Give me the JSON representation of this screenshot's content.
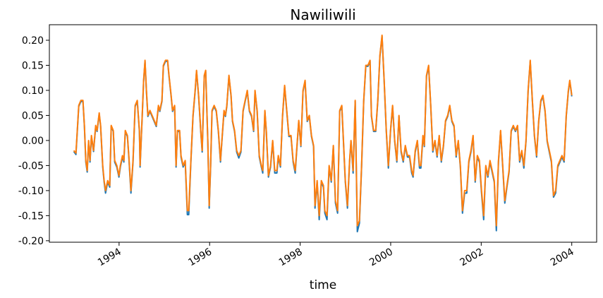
{
  "chart_data": {
    "type": "line",
    "title": "Nawiliwili",
    "x_label": "time",
    "x": [
      1993.0,
      1993.047,
      1993.109,
      1993.156,
      1993.202,
      1993.234,
      1993.265,
      1993.296,
      1993.327,
      1993.358,
      1993.389,
      1993.436,
      1993.483,
      1993.514,
      1993.561,
      1993.592,
      1993.639,
      1993.67,
      1993.701,
      1993.748,
      1993.794,
      1993.826,
      1993.872,
      1993.903,
      1993.95,
      1993.997,
      1994.028,
      1994.075,
      1994.106,
      1994.137,
      1994.184,
      1994.215,
      1994.262,
      1994.308,
      1994.355,
      1994.402,
      1994.449,
      1994.464,
      1994.511,
      1994.542,
      1994.573,
      1994.604,
      1994.636,
      1994.682,
      1994.729,
      1994.776,
      1994.822,
      1994.869,
      1994.9,
      1994.947,
      1994.978,
      1995.025,
      1995.072,
      1995.103,
      1995.15,
      1995.181,
      1995.227,
      1995.259,
      1995.29,
      1995.337,
      1995.368,
      1995.415,
      1995.461,
      1995.508,
      1995.539,
      1995.586,
      1995.633,
      1995.68,
      1995.711,
      1995.757,
      1995.804,
      1995.836,
      1995.882,
      1995.913,
      1995.96,
      1995.991,
      1996.022,
      1996.053,
      1996.1,
      1996.147,
      1996.193,
      1996.24,
      1996.271,
      1996.318,
      1996.349,
      1996.38,
      1996.427,
      1996.474,
      1996.505,
      1996.551,
      1996.598,
      1996.645,
      1996.692,
      1996.739,
      1996.785,
      1996.832,
      1996.879,
      1996.926,
      1996.972,
      1997.003,
      1997.05,
      1997.097,
      1997.143,
      1997.174,
      1997.221,
      1997.252,
      1997.299,
      1997.346,
      1997.393,
      1997.439,
      1997.486,
      1997.517,
      1997.564,
      1997.611,
      1997.657,
      1997.704,
      1997.751,
      1997.798,
      1997.845,
      1997.891,
      1997.922,
      1997.969,
      1998.016,
      1998.063,
      1998.109,
      1998.156,
      1998.203,
      1998.25,
      1998.297,
      1998.328,
      1998.375,
      1998.421,
      1998.468,
      1998.515,
      1998.546,
      1998.593,
      1998.64,
      1998.687,
      1998.733,
      1998.78,
      1998.827,
      1998.874,
      1998.92,
      1998.967,
      1998.998,
      1999.045,
      1999.092,
      1999.123,
      1999.17,
      1999.216,
      1999.263,
      1999.31,
      1999.357,
      1999.404,
      1999.45,
      1999.497,
      1999.544,
      1999.575,
      1999.622,
      1999.669,
      1999.715,
      1999.762,
      1999.809,
      1999.856,
      1999.903,
      1999.949,
      1999.996,
      2000.042,
      2000.089,
      2000.136,
      2000.183,
      2000.23,
      2000.277,
      2000.323,
      2000.37,
      2000.417,
      2000.464,
      2000.495,
      2000.542,
      2000.589,
      2000.636,
      2000.667,
      2000.713,
      2000.744,
      2000.791,
      2000.838,
      2000.885,
      2000.931,
      2000.978,
      2001.025,
      2001.072,
      2001.118,
      2001.165,
      2001.212,
      2001.259,
      2001.305,
      2001.352,
      2001.399,
      2001.446,
      2001.493,
      2001.539,
      2001.586,
      2001.633,
      2001.68,
      2001.727,
      2001.773,
      2001.82,
      2001.867,
      2001.914,
      2001.96,
      2002.007,
      2002.054,
      2002.101,
      2002.147,
      2002.194,
      2002.241,
      2002.288,
      2002.334,
      2002.381,
      2002.428,
      2002.475,
      2002.521,
      2002.568,
      2002.615,
      2002.662,
      2002.709,
      2002.755,
      2002.802,
      2002.849,
      2002.896,
      2002.942,
      2002.989,
      2003.036,
      2003.083,
      2003.13,
      2003.176,
      2003.223,
      2003.27,
      2003.317,
      2003.363,
      2003.41,
      2003.457,
      2003.504,
      2003.55,
      2003.597,
      2003.644,
      2003.691,
      2003.738,
      2003.784,
      2003.831,
      2003.878,
      2003.925,
      2003.956,
      2003.987,
      2004.0
    ],
    "series": [
      {
        "color": "#1f77b4",
        "values": [
          -0.022,
          -0.028,
          0.068,
          0.078,
          0.078,
          0.028,
          -0.043,
          -0.063,
          -0.002,
          -0.043,
          0.008,
          -0.022,
          0.028,
          0.018,
          0.053,
          0.028,
          -0.053,
          -0.083,
          -0.105,
          -0.083,
          -0.093,
          0.028,
          0.018,
          -0.043,
          -0.053,
          -0.073,
          -0.053,
          -0.033,
          -0.043,
          0.018,
          0.008,
          -0.033,
          -0.105,
          -0.043,
          0.068,
          0.078,
          0.018,
          -0.053,
          0.048,
          0.118,
          0.158,
          0.098,
          0.048,
          0.058,
          0.048,
          0.038,
          0.028,
          0.068,
          0.058,
          0.078,
          0.148,
          0.158,
          0.158,
          0.128,
          0.088,
          0.058,
          0.068,
          -0.053,
          0.018,
          0.018,
          -0.033,
          -0.053,
          -0.043,
          -0.148,
          -0.148,
          -0.043,
          0.048,
          0.098,
          0.138,
          0.088,
          0.018,
          -0.023,
          0.128,
          0.138,
          -0.002,
          -0.135,
          -0.053,
          0.058,
          0.068,
          0.058,
          0.018,
          -0.043,
          -0.002,
          0.058,
          0.048,
          0.068,
          0.128,
          0.088,
          0.038,
          0.018,
          -0.023,
          -0.035,
          -0.023,
          0.058,
          0.078,
          0.098,
          0.058,
          0.048,
          0.018,
          0.098,
          0.058,
          -0.033,
          -0.053,
          -0.065,
          0.058,
          0.018,
          -0.073,
          -0.053,
          -0.002,
          -0.065,
          -0.065,
          -0.033,
          -0.053,
          0.048,
          0.108,
          0.058,
          0.008,
          0.008,
          -0.043,
          -0.065,
          -0.023,
          0.038,
          -0.012,
          0.098,
          0.118,
          0.038,
          0.048,
          0.008,
          -0.012,
          -0.135,
          -0.083,
          -0.158,
          -0.083,
          -0.093,
          -0.145,
          -0.158,
          -0.053,
          -0.083,
          -0.012,
          -0.125,
          -0.145,
          0.058,
          0.068,
          -0.023,
          -0.083,
          -0.135,
          -0.043,
          -0.002,
          -0.065,
          0.078,
          -0.182,
          -0.165,
          -0.053,
          0.078,
          0.148,
          0.148,
          0.158,
          0.048,
          0.018,
          0.018,
          0.078,
          0.168,
          0.208,
          0.118,
          0.018,
          -0.055,
          0.018,
          0.068,
          -0.002,
          -0.043,
          0.048,
          -0.023,
          -0.043,
          -0.012,
          -0.033,
          -0.033,
          -0.065,
          -0.073,
          -0.023,
          -0.002,
          -0.055,
          -0.055,
          0.008,
          -0.012,
          0.128,
          0.148,
          0.068,
          -0.023,
          -0.002,
          -0.033,
          0.008,
          -0.043,
          -0.012,
          0.038,
          0.048,
          0.068,
          0.038,
          0.028,
          -0.033,
          -0.002,
          -0.053,
          -0.145,
          -0.105,
          -0.105,
          -0.043,
          -0.023,
          0.008,
          -0.083,
          -0.033,
          -0.043,
          -0.105,
          -0.158,
          -0.053,
          -0.073,
          -0.043,
          -0.063,
          -0.083,
          -0.18,
          -0.043,
          0.018,
          -0.053,
          -0.125,
          -0.093,
          -0.063,
          0.018,
          0.028,
          0.018,
          0.028,
          -0.043,
          -0.023,
          -0.055,
          -0.002,
          0.098,
          0.158,
          0.078,
          0.008,
          -0.033,
          0.038,
          0.078,
          0.088,
          0.058,
          -0.002,
          -0.023,
          -0.043,
          -0.113,
          -0.105,
          -0.053,
          -0.043,
          -0.033,
          -0.043,
          0.048,
          0.098,
          0.118,
          0.098,
          0.088
        ]
      },
      {
        "color": "#ff7f0e",
        "values": [
          -0.02,
          -0.025,
          0.07,
          0.08,
          0.08,
          0.03,
          -0.04,
          -0.06,
          0.0,
          -0.04,
          0.01,
          -0.02,
          0.03,
          0.02,
          0.055,
          0.03,
          -0.05,
          -0.08,
          -0.1,
          -0.08,
          -0.09,
          0.03,
          0.02,
          -0.04,
          -0.05,
          -0.07,
          -0.05,
          -0.03,
          -0.04,
          0.02,
          0.01,
          -0.03,
          -0.1,
          -0.04,
          0.07,
          0.08,
          0.02,
          -0.05,
          0.05,
          0.12,
          0.16,
          0.1,
          0.05,
          0.06,
          0.05,
          0.04,
          0.03,
          0.07,
          0.06,
          0.08,
          0.15,
          0.16,
          0.16,
          0.13,
          0.09,
          0.06,
          0.07,
          -0.05,
          0.02,
          0.02,
          -0.03,
          -0.05,
          -0.04,
          -0.14,
          -0.14,
          -0.04,
          0.05,
          0.1,
          0.14,
          0.09,
          0.02,
          -0.02,
          0.13,
          0.14,
          0.0,
          -0.13,
          -0.05,
          0.06,
          0.07,
          0.06,
          0.02,
          -0.04,
          0.0,
          0.06,
          0.05,
          0.07,
          0.13,
          0.09,
          0.04,
          0.02,
          -0.02,
          -0.03,
          -0.02,
          0.06,
          0.08,
          0.1,
          0.06,
          0.05,
          0.02,
          0.1,
          0.06,
          -0.03,
          -0.05,
          -0.06,
          0.06,
          0.02,
          -0.07,
          -0.05,
          0.0,
          -0.06,
          -0.06,
          -0.03,
          -0.05,
          0.05,
          0.11,
          0.06,
          0.01,
          0.01,
          -0.04,
          -0.06,
          -0.02,
          0.04,
          -0.01,
          0.1,
          0.12,
          0.04,
          0.05,
          0.01,
          -0.01,
          -0.13,
          -0.08,
          -0.15,
          -0.08,
          -0.09,
          -0.14,
          -0.15,
          -0.05,
          -0.08,
          -0.01,
          -0.12,
          -0.14,
          0.06,
          0.07,
          -0.02,
          -0.08,
          -0.13,
          -0.04,
          0.0,
          -0.06,
          0.08,
          -0.17,
          -0.16,
          -0.05,
          0.08,
          0.15,
          0.15,
          0.16,
          0.05,
          0.02,
          0.02,
          0.08,
          0.17,
          0.21,
          0.12,
          0.02,
          -0.05,
          0.02,
          0.07,
          0.0,
          -0.04,
          0.05,
          -0.02,
          -0.04,
          -0.01,
          -0.03,
          -0.03,
          -0.06,
          -0.07,
          -0.02,
          0.0,
          -0.05,
          -0.05,
          0.01,
          -0.01,
          0.13,
          0.15,
          0.07,
          -0.02,
          0.0,
          -0.03,
          0.01,
          -0.04,
          -0.01,
          0.04,
          0.05,
          0.07,
          0.04,
          0.03,
          -0.03,
          0.0,
          -0.05,
          -0.14,
          -0.1,
          -0.1,
          -0.04,
          -0.02,
          0.01,
          -0.08,
          -0.03,
          -0.04,
          -0.1,
          -0.15,
          -0.05,
          -0.07,
          -0.04,
          -0.06,
          -0.08,
          -0.17,
          -0.04,
          0.02,
          -0.05,
          -0.12,
          -0.09,
          -0.06,
          0.02,
          0.03,
          0.02,
          0.03,
          -0.04,
          -0.02,
          -0.05,
          0.0,
          0.1,
          0.16,
          0.08,
          0.01,
          -0.03,
          0.04,
          0.08,
          0.09,
          0.06,
          0.0,
          -0.02,
          -0.04,
          -0.11,
          -0.1,
          -0.05,
          -0.04,
          -0.03,
          -0.04,
          0.05,
          0.1,
          0.12,
          0.1,
          0.09
        ]
      }
    ],
    "xlim": [
      1992.46,
      2004.55
    ],
    "xticks": [
      1994,
      1996,
      1998,
      2000,
      2002,
      2004
    ],
    "ylim": [
      -0.203,
      0.231
    ],
    "yticks": [
      {
        "value": -0.2,
        "label": "-0.20"
      },
      -0.15,
      {
        "value": -0.1,
        "label": "-0.10"
      },
      -0.05,
      {
        "value": 0,
        "label": "0.00"
      },
      0.05,
      {
        "value": 0.1,
        "label": "0.10"
      },
      0.15,
      {
        "value": 0.2,
        "label": "0.20"
      }
    ],
    "grid": false
  }
}
